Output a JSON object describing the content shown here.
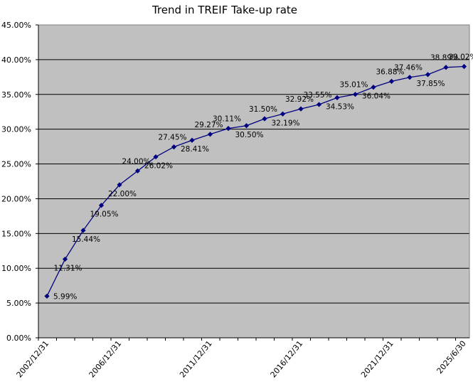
{
  "chart_data": {
    "type": "line",
    "title": "Trend in TREIF Take-up rate",
    "xlabel": "",
    "ylabel": "",
    "ylim": [
      0,
      45
    ],
    "y_tick_values": [
      0,
      5,
      10,
      15,
      20,
      25,
      30,
      35,
      40,
      45
    ],
    "y_tick_labels": [
      "0.00%",
      "5.00%",
      "10.00%",
      "15.00%",
      "20.00%",
      "25.00%",
      "30.00%",
      "35.00%",
      "40.00%",
      "45.00%"
    ],
    "x": [
      "2002/12/31",
      "2003/12/31",
      "2004/12/31",
      "2005/12/31",
      "2006/12/31",
      "2007/12/31",
      "2008/12/31",
      "2009/12/31",
      "2010/12/31",
      "2011/12/31",
      "2012/12/31",
      "2013/12/31",
      "2014/12/31",
      "2015/12/31",
      "2016/12/31",
      "2017/12/31",
      "2018/12/31",
      "2019/12/31",
      "2020/12/31",
      "2021/12/31",
      "2022/12/31",
      "2023/12/31",
      "2024/12/31",
      "2025/6/30"
    ],
    "x_tick_labels": [
      "2002/12/31",
      "2006/12/31",
      "2011/12/31",
      "2016/12/31",
      "2021/12/31",
      "2025/6/30"
    ],
    "series": [
      {
        "name": "",
        "values": [
          5.99,
          11.31,
          15.44,
          19.05,
          22.0,
          24.0,
          26.02,
          27.45,
          28.41,
          29.27,
          30.11,
          30.5,
          31.5,
          32.19,
          32.92,
          33.55,
          34.53,
          35.01,
          36.04,
          36.88,
          37.46,
          37.85,
          38.89,
          39.02
        ],
        "labels": [
          "",
          "11.31%",
          "15.44%",
          "19.05%",
          "22.00%",
          "24.00%",
          "26.02%",
          "27.45%",
          "28.41%",
          "29.27%",
          "30.11%",
          "30.50%",
          "31.50%",
          "32.19%",
          "32.92%",
          "33.55%",
          "34.53%",
          "35.01%",
          "36.04%",
          "36.88%",
          "37.46%",
          "37.85%",
          "38.89%",
          "39.02%"
        ],
        "label_side": [
          "",
          "below",
          "below",
          "below",
          "below",
          "above",
          "below",
          "above",
          "below",
          "above",
          "above",
          "below",
          "above",
          "below",
          "above",
          "above",
          "below",
          "above",
          "below",
          "above",
          "above",
          "below",
          "above",
          "above"
        ],
        "first_label": "5.99%",
        "color": "#000080"
      }
    ],
    "grid": true,
    "legend": "none",
    "plot_background": "#c0c0c0"
  }
}
